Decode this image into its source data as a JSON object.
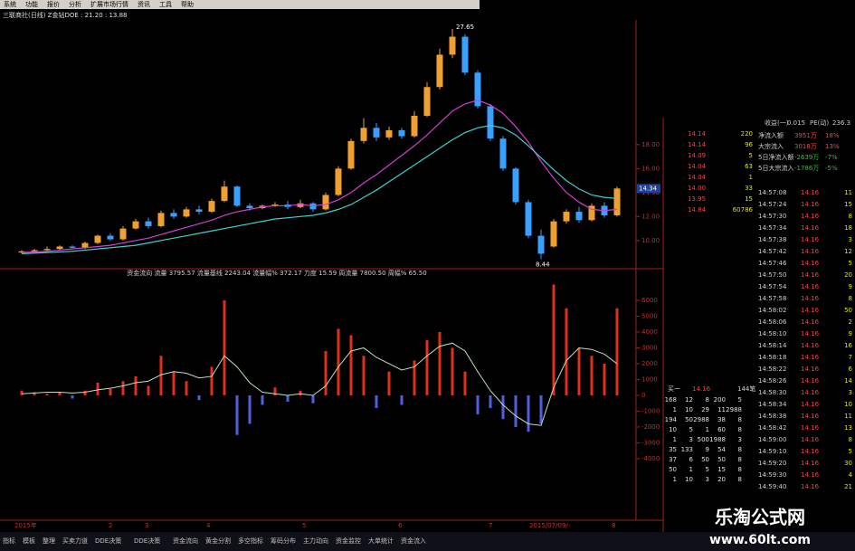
{
  "menu": [
    "系统",
    "功能",
    "报价",
    "分析",
    "扩展市场行情",
    "资讯",
    "工具",
    "帮助"
  ],
  "title_bar": "三联商社(日线)  Z金钻DOE : 21.20 : 13.88",
  "price_chart": {
    "type": "candlestick",
    "colors": {
      "up": "#f0a030",
      "down": "#3aa0ff"
    },
    "open": [
      9.0,
      9.1,
      9.2,
      9.3,
      9.5,
      9.4,
      9.8,
      10.4,
      10.1,
      11.0,
      11.6,
      11.2,
      12.3,
      12.0,
      12.6,
      12.4,
      13.3,
      14.5,
      12.9,
      12.7,
      12.9,
      13.0,
      12.8,
      13.1,
      12.6,
      13.8,
      16.0,
      18.3,
      19.4,
      18.6,
      19.2,
      18.7,
      20.4,
      22.8,
      25.5,
      27.0,
      24.0,
      21.2,
      18.5,
      16.0,
      13.2,
      10.4,
      9.5,
      11.6,
      12.4,
      11.7,
      12.9,
      12.1
    ],
    "high": [
      9.2,
      9.3,
      9.5,
      9.6,
      9.6,
      9.9,
      10.5,
      10.6,
      11.2,
      11.8,
      11.9,
      12.5,
      12.6,
      12.8,
      12.9,
      13.5,
      15.0,
      14.6,
      13.1,
      13.0,
      13.2,
      13.3,
      13.4,
      13.2,
      14.0,
      16.2,
      18.5,
      20.2,
      19.8,
      19.5,
      19.4,
      20.8,
      23.2,
      26.0,
      27.65,
      27.2,
      24.2,
      21.4,
      18.7,
      16.1,
      13.4,
      10.9,
      11.8,
      12.6,
      12.8,
      13.1,
      13.2,
      14.5
    ],
    "low": [
      8.9,
      9.0,
      9.1,
      9.2,
      9.3,
      9.3,
      9.7,
      10.0,
      10.0,
      10.9,
      11.0,
      11.1,
      11.8,
      11.9,
      12.2,
      12.3,
      13.2,
      12.8,
      12.5,
      12.6,
      12.8,
      12.6,
      12.7,
      12.4,
      12.5,
      13.7,
      15.9,
      18.1,
      18.3,
      18.4,
      18.5,
      18.6,
      20.3,
      22.6,
      25.2,
      23.8,
      21.0,
      18.3,
      15.8,
      13.0,
      10.2,
      8.44,
      9.4,
      11.4,
      11.5,
      11.6,
      11.9,
      12.0
    ],
    "close": [
      9.1,
      9.2,
      9.3,
      9.5,
      9.4,
      9.8,
      10.4,
      10.1,
      11.0,
      11.6,
      11.2,
      12.3,
      12.0,
      12.6,
      12.4,
      13.3,
      14.5,
      12.9,
      12.7,
      12.9,
      13.0,
      12.8,
      13.1,
      12.6,
      13.8,
      16.0,
      18.3,
      19.4,
      18.6,
      19.2,
      18.7,
      20.4,
      22.8,
      25.5,
      27.0,
      24.0,
      21.2,
      18.5,
      16.0,
      13.2,
      10.4,
      8.9,
      11.6,
      12.4,
      11.7,
      12.9,
      12.1,
      14.34
    ],
    "ma": [
      {
        "color": "#d040d0",
        "values": [
          9.0,
          9.05,
          9.1,
          9.2,
          9.3,
          9.4,
          9.5,
          9.6,
          9.8,
          10.0,
          10.2,
          10.5,
          10.8,
          11.1,
          11.4,
          11.7,
          12.1,
          12.4,
          12.6,
          12.8,
          12.9,
          12.9,
          13.0,
          12.9,
          13.0,
          13.4,
          14.0,
          14.8,
          15.5,
          16.3,
          17.1,
          17.9,
          18.8,
          19.8,
          20.8,
          21.4,
          21.7,
          21.3,
          20.6,
          19.5,
          18.2,
          16.6,
          15.2,
          14.0,
          13.2,
          12.6,
          12.5,
          12.6
        ]
      },
      {
        "color": "#40d0d0",
        "values": [
          8.9,
          8.95,
          9.0,
          9.05,
          9.1,
          9.2,
          9.3,
          9.4,
          9.5,
          9.6,
          9.8,
          10.0,
          10.2,
          10.4,
          10.6,
          10.8,
          11.0,
          11.2,
          11.4,
          11.6,
          11.8,
          11.9,
          12.0,
          12.1,
          12.3,
          12.6,
          13.0,
          13.6,
          14.2,
          14.9,
          15.6,
          16.3,
          17.0,
          17.7,
          18.4,
          19.0,
          19.4,
          19.6,
          19.4,
          18.8,
          17.9,
          16.9,
          15.9,
          15.0,
          14.3,
          13.8,
          13.6,
          13.5
        ]
      }
    ],
    "ylim": [
      7.8,
      28.4
    ],
    "yticks": [
      {
        "value": 10,
        "label": "10.00"
      },
      {
        "value": 12,
        "label": "12.00"
      },
      {
        "value": 14,
        "label": "14.00"
      },
      {
        "value": 16,
        "label": "16.00"
      },
      {
        "value": 18,
        "label": "18.00"
      }
    ]
  },
  "flow_chart": {
    "type": "bar",
    "title": "资金流向  流量 3795.57  流量基线 2243.04  流量幅% 372.17  力度 15.59  周流量 7800.50  周幅% 65.50",
    "colors": {
      "up": "#e03020",
      "down": "#5060e0",
      "line": "#c0e0c0"
    },
    "values": [
      300,
      200,
      100,
      200,
      -200,
      300,
      800,
      400,
      900,
      1200,
      600,
      2500,
      1500,
      900,
      -300,
      1800,
      6000,
      -2500,
      -1800,
      -600,
      500,
      -400,
      300,
      -500,
      2800,
      4200,
      3800,
      2500,
      -800,
      1500,
      -600,
      2200,
      3500,
      4000,
      3000,
      1500,
      -1200,
      -800,
      -1500,
      -2000,
      -2300,
      -1800,
      7000,
      5500,
      3000,
      2500,
      2000,
      5500
    ],
    "line": [
      100,
      150,
      200,
      200,
      150,
      200,
      350,
      450,
      600,
      800,
      900,
      1300,
      1500,
      1400,
      1100,
      1200,
      2500,
      1800,
      800,
      200,
      100,
      0,
      100,
      0,
      600,
      1800,
      2800,
      3000,
      2400,
      2000,
      1600,
      1800,
      2500,
      3100,
      3300,
      2800,
      1500,
      300,
      -600,
      -1300,
      -1800,
      -1900,
      500,
      2200,
      3000,
      2900,
      2600,
      2000
    ],
    "ylim": [
      -7600,
      7540
    ],
    "yticks": [
      6000,
      5000,
      4000,
      3000,
      2000,
      1000,
      0,
      -1000,
      -2000,
      -3000,
      -4000
    ]
  },
  "date_labels": [
    "2015年",
    "2",
    "3",
    "4",
    "5",
    "6",
    "7",
    "2015/07/09/-",
    "8"
  ],
  "quote_header": [
    "收益(一)",
    "0.015",
    "PE(动)",
    "236.3"
  ],
  "flows": [
    [
      "净流入额",
      "3951万",
      "18%"
    ],
    [
      "大宗流入",
      "3018万",
      "13%"
    ],
    [
      "5日净流入额",
      "-2639万",
      "-7%"
    ],
    [
      "5日大宗流入",
      "-1786万",
      "-5%"
    ]
  ],
  "order_book": [
    [
      "14.14",
      "220"
    ],
    [
      "14.14",
      "96"
    ],
    [
      "14.09",
      "5"
    ],
    [
      "14.04",
      "63"
    ],
    [
      "14.04",
      "1"
    ],
    [
      "14.00",
      "33"
    ],
    [
      "13.95",
      "15"
    ],
    [
      "14.84",
      "60786"
    ]
  ],
  "bid_header": [
    "买一",
    "14.16",
    "144笔"
  ],
  "bid_rows": [
    [
      "168",
      "12",
      "8",
      "200",
      "5"
    ],
    [
      "1",
      "10",
      "29",
      "11",
      "2988"
    ],
    [
      "194",
      "50",
      "2988",
      "38",
      "8"
    ],
    [
      "10",
      "5",
      "1",
      "60",
      "8"
    ],
    [
      "1",
      "3",
      "500",
      "1988",
      "3"
    ],
    [
      "35",
      "133",
      "9",
      "54",
      "8"
    ],
    [
      "37",
      "6",
      "50",
      "50",
      "8"
    ],
    [
      "50",
      "1",
      "5",
      "15",
      "8"
    ],
    [
      "1",
      "10",
      "3",
      "20",
      "8"
    ]
  ],
  "trades": [
    [
      "14:57:08",
      "14.16",
      "11"
    ],
    [
      "14:57:24",
      "14.16",
      "15"
    ],
    [
      "14:57:30",
      "14.16",
      "8"
    ],
    [
      "14:57:34",
      "14.16",
      "18"
    ],
    [
      "14:57:38",
      "14.16",
      "3"
    ],
    [
      "14:57:42",
      "14.16",
      "12"
    ],
    [
      "14:57:46",
      "14.16",
      "5"
    ],
    [
      "14:57:50",
      "14.16",
      "20"
    ],
    [
      "14:57:54",
      "14.16",
      "9"
    ],
    [
      "14:57:58",
      "14.16",
      "8"
    ],
    [
      "14:58:02",
      "14.16",
      "50"
    ],
    [
      "14:58:06",
      "14.16",
      "2"
    ],
    [
      "14:58:10",
      "14.16",
      "9"
    ],
    [
      "14:58:14",
      "14.16",
      "16"
    ],
    [
      "14:58:18",
      "14.16",
      "7"
    ],
    [
      "14:58:22",
      "14.16",
      "6"
    ],
    [
      "14:58:26",
      "14.16",
      "14"
    ],
    [
      "14:58:30",
      "14.16",
      "3"
    ],
    [
      "14:58:34",
      "14.16",
      "10"
    ],
    [
      "14:58:38",
      "14.16",
      "11"
    ],
    [
      "14:58:42",
      "14.16",
      "13"
    ],
    [
      "14:59:00",
      "14.16",
      "8"
    ],
    [
      "14:59:10",
      "14.16",
      "5"
    ],
    [
      "14:59:20",
      "14.16",
      "30"
    ],
    [
      "14:59:30",
      "14.16",
      "4"
    ],
    [
      "14:59:40",
      "14.16",
      "21"
    ]
  ],
  "footer_tabs": [
    "指标",
    "模板",
    "整理",
    "买卖力道",
    "DDE决策",
    "DDE决策",
    "资金流向",
    "黄金分割",
    "多空指标",
    "筹码分布",
    "主力动向",
    "资金监控",
    "大单统计",
    "资金流入"
  ],
  "watermark": [
    "乐淘公式网",
    "www.60lt.com"
  ]
}
